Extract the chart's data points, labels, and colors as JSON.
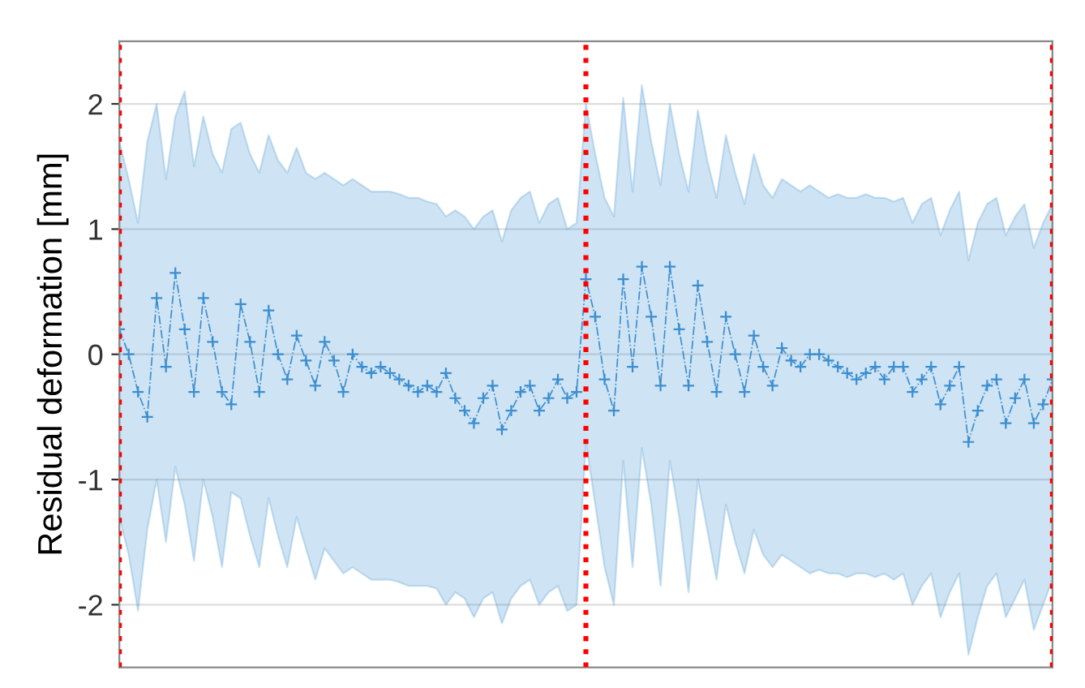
{
  "chart_data": {
    "type": "line",
    "ylabel": "Residual deformation [mm]",
    "categories": [
      null,
      null,
      null,
      null,
      null,
      null,
      null,
      null,
      null,
      null,
      null,
      null,
      null,
      null,
      null,
      null,
      null,
      null,
      null,
      null,
      null,
      null,
      null,
      null,
      null,
      null,
      null,
      null,
      null,
      null,
      null,
      null,
      null,
      null,
      null,
      null,
      null,
      null,
      null,
      null,
      null,
      null,
      null,
      null,
      null,
      null,
      null,
      null,
      null,
      null,
      null,
      null,
      null,
      null,
      null,
      null,
      null,
      null,
      null,
      null,
      null,
      null,
      null,
      null,
      null,
      null,
      null,
      null,
      null,
      null,
      null,
      null,
      null,
      null,
      null,
      null,
      null,
      null,
      null,
      null,
      null,
      null,
      null,
      null,
      null,
      null,
      null,
      null,
      null,
      null,
      null,
      null,
      null,
      null,
      null,
      null,
      null,
      null,
      null,
      null,
      null
    ],
    "series": [
      {
        "color": "#3b8ed0",
        "values": [
          0.2,
          0.0,
          -0.3,
          -0.5,
          0.45,
          -0.1,
          0.65,
          0.2,
          -0.3,
          0.45,
          0.1,
          -0.3,
          -0.4,
          0.4,
          0.1,
          -0.3,
          0.35,
          0.0,
          -0.2,
          0.15,
          -0.05,
          -0.25,
          0.1,
          -0.05,
          -0.3,
          0.0,
          -0.1,
          -0.15,
          -0.1,
          -0.15,
          -0.2,
          -0.25,
          -0.3,
          -0.25,
          -0.3,
          -0.15,
          -0.35,
          -0.45,
          -0.55,
          -0.35,
          -0.25,
          -0.6,
          -0.45,
          -0.3,
          -0.25,
          -0.45,
          -0.35,
          -0.2,
          -0.35,
          -0.3,
          0.6,
          0.3,
          -0.2,
          -0.45,
          0.6,
          -0.1,
          0.7,
          0.3,
          -0.25,
          0.7,
          0.2,
          -0.25,
          0.55,
          0.1,
          -0.3,
          0.3,
          0.0,
          -0.3,
          0.15,
          -0.1,
          -0.25,
          0.05,
          -0.05,
          -0.1,
          0.0,
          0.0,
          -0.05,
          -0.1,
          -0.15,
          -0.2,
          -0.15,
          -0.1,
          -0.2,
          -0.1,
          -0.1,
          -0.3,
          -0.2,
          -0.1,
          -0.4,
          -0.25,
          -0.1,
          -0.7,
          -0.45,
          -0.25,
          -0.2,
          -0.55,
          -0.35,
          -0.2,
          -0.55,
          -0.4,
          -0.2
        ],
        "upper": [
          1.7,
          1.4,
          1.05,
          1.7,
          2.0,
          1.4,
          1.9,
          2.1,
          1.5,
          1.9,
          1.6,
          1.45,
          1.8,
          1.85,
          1.6,
          1.45,
          1.75,
          1.55,
          1.45,
          1.65,
          1.45,
          1.4,
          1.45,
          1.4,
          1.35,
          1.4,
          1.35,
          1.3,
          1.3,
          1.3,
          1.28,
          1.25,
          1.25,
          1.22,
          1.2,
          1.1,
          1.15,
          1.1,
          1.0,
          1.1,
          1.15,
          0.9,
          1.15,
          1.25,
          1.3,
          1.05,
          1.2,
          1.25,
          1.0,
          1.05,
          2.0,
          1.6,
          1.25,
          1.1,
          2.05,
          1.3,
          2.15,
          1.7,
          1.35,
          2.0,
          1.6,
          1.3,
          1.95,
          1.55,
          1.25,
          1.75,
          1.45,
          1.2,
          1.6,
          1.35,
          1.25,
          1.4,
          1.35,
          1.3,
          1.35,
          1.3,
          1.25,
          1.28,
          1.25,
          1.25,
          1.28,
          1.25,
          1.25,
          1.22,
          1.25,
          1.05,
          1.2,
          1.25,
          0.95,
          1.15,
          1.3,
          0.75,
          1.05,
          1.2,
          1.25,
          0.95,
          1.1,
          1.2,
          0.85,
          1.05,
          1.2
        ],
        "lower": [
          -1.3,
          -1.6,
          -2.05,
          -1.4,
          -1.0,
          -1.5,
          -0.9,
          -1.2,
          -1.65,
          -1.0,
          -1.3,
          -1.7,
          -1.1,
          -1.15,
          -1.45,
          -1.7,
          -1.15,
          -1.45,
          -1.7,
          -1.3,
          -1.55,
          -1.8,
          -1.55,
          -1.65,
          -1.75,
          -1.7,
          -1.75,
          -1.8,
          -1.8,
          -1.8,
          -1.82,
          -1.85,
          -1.85,
          -1.85,
          -1.87,
          -2.0,
          -1.9,
          -1.95,
          -2.1,
          -1.95,
          -1.9,
          -2.15,
          -1.95,
          -1.85,
          -1.8,
          -2.0,
          -1.9,
          -1.85,
          -2.05,
          -2.0,
          -0.7,
          -1.2,
          -1.7,
          -2.0,
          -0.85,
          -1.7,
          -0.75,
          -1.2,
          -1.85,
          -0.85,
          -1.3,
          -1.9,
          -1.0,
          -1.4,
          -1.8,
          -1.2,
          -1.5,
          -1.75,
          -1.4,
          -1.6,
          -1.7,
          -1.6,
          -1.65,
          -1.7,
          -1.75,
          -1.72,
          -1.75,
          -1.75,
          -1.78,
          -1.75,
          -1.75,
          -1.78,
          -1.75,
          -1.8,
          -1.75,
          -2.0,
          -1.85,
          -1.75,
          -2.1,
          -1.9,
          -1.75,
          -2.4,
          -2.1,
          -1.85,
          -1.75,
          -2.1,
          -1.95,
          -1.8,
          -2.2,
          -2.0,
          -1.8
        ]
      }
    ],
    "marker": "cross",
    "line_style": "dashed",
    "ylim": [
      -2.5,
      2.5
    ],
    "yticks": [
      -2,
      -1,
      0,
      1,
      2
    ],
    "grid": "y",
    "tick_labels": "y"
  }
}
